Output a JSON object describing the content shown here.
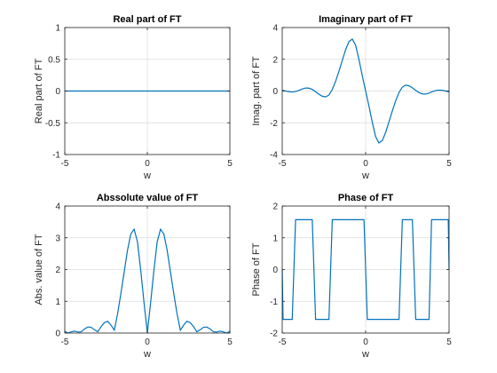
{
  "chart_data": [
    {
      "type": "line",
      "title": "Real part of FT",
      "xlabel": "w",
      "ylabel": "Real part of FT",
      "xlim": [
        -5,
        5
      ],
      "ylim": [
        -1,
        1
      ],
      "xticks": [
        -5,
        0,
        5
      ],
      "yticks": [
        -1,
        -0.5,
        0,
        0.5,
        1
      ],
      "grid": true,
      "series": [
        {
          "color": "#0072BD",
          "x": [
            -5,
            -4,
            -3,
            -2,
            -1,
            0,
            1,
            2,
            3,
            4,
            5
          ],
          "y": [
            0,
            0,
            0,
            0,
            0,
            0,
            0,
            0,
            0,
            0,
            0
          ]
        }
      ]
    },
    {
      "type": "line",
      "title": "Imaginary part of FT",
      "xlabel": "w",
      "ylabel": "Imag. part of FT",
      "xlim": [
        -5,
        5
      ],
      "ylim": [
        -4,
        4
      ],
      "xticks": [
        -5,
        0,
        5
      ],
      "yticks": [
        -4,
        -2,
        0,
        2,
        4
      ],
      "grid": true,
      "series": [
        {
          "color": "#0072BD",
          "x": [
            -5.0,
            -4.8,
            -4.6,
            -4.4,
            -4.2,
            -4.0,
            -3.8,
            -3.6,
            -3.4,
            -3.2,
            -3.0,
            -2.8,
            -2.6,
            -2.4,
            -2.2,
            -2.0,
            -1.8,
            -1.6,
            -1.4,
            -1.2,
            -1.0,
            -0.8,
            -0.6,
            -0.4,
            -0.2,
            0.0,
            0.2,
            0.4,
            0.6,
            0.8,
            1.0,
            1.2,
            1.4,
            1.6,
            1.8,
            2.0,
            2.2,
            2.4,
            2.6,
            2.8,
            3.0,
            3.2,
            3.4,
            3.6,
            3.8,
            4.0,
            4.2,
            4.4,
            4.6,
            4.8,
            5.0
          ],
          "y": [
            0.05,
            0.0,
            -0.04,
            -0.06,
            -0.03,
            0.04,
            0.13,
            0.19,
            0.18,
            0.1,
            -0.04,
            -0.2,
            -0.33,
            -0.37,
            -0.25,
            0.09,
            0.61,
            1.25,
            1.93,
            2.61,
            3.12,
            3.27,
            2.88,
            1.98,
            0.96,
            0.0,
            -0.96,
            -1.98,
            -2.88,
            -3.27,
            -3.12,
            -2.61,
            -1.93,
            -1.25,
            -0.61,
            -0.09,
            0.25,
            0.37,
            0.33,
            0.2,
            0.04,
            -0.1,
            -0.18,
            -0.19,
            -0.13,
            -0.04,
            0.03,
            0.06,
            0.04,
            0.0,
            -0.05
          ]
        }
      ]
    },
    {
      "type": "line",
      "title": "Abssolute value of FT",
      "xlabel": "w",
      "ylabel": "Abs. value of FT",
      "xlim": [
        -5,
        5
      ],
      "ylim": [
        0,
        4
      ],
      "xticks": [
        -5,
        0,
        5
      ],
      "yticks": [
        0,
        1,
        2,
        3,
        4
      ],
      "grid": true,
      "series": [
        {
          "color": "#0072BD",
          "x": [
            -5.0,
            -4.8,
            -4.6,
            -4.4,
            -4.2,
            -4.0,
            -3.8,
            -3.6,
            -3.4,
            -3.2,
            -3.0,
            -2.8,
            -2.6,
            -2.4,
            -2.2,
            -2.0,
            -1.8,
            -1.6,
            -1.4,
            -1.2,
            -1.0,
            -0.8,
            -0.6,
            -0.4,
            -0.2,
            0.0,
            0.2,
            0.4,
            0.6,
            0.8,
            1.0,
            1.2,
            1.4,
            1.6,
            1.8,
            2.0,
            2.2,
            2.4,
            2.6,
            2.8,
            3.0,
            3.2,
            3.4,
            3.6,
            3.8,
            4.0,
            4.2,
            4.4,
            4.6,
            4.8,
            5.0
          ],
          "y": [
            0.05,
            0.0,
            0.04,
            0.06,
            0.03,
            0.04,
            0.13,
            0.19,
            0.18,
            0.1,
            0.04,
            0.2,
            0.33,
            0.37,
            0.25,
            0.09,
            0.61,
            1.25,
            1.93,
            2.61,
            3.12,
            3.27,
            2.88,
            1.98,
            0.96,
            0.0,
            0.96,
            1.98,
            2.88,
            3.27,
            3.12,
            2.61,
            1.93,
            1.25,
            0.61,
            0.09,
            0.25,
            0.37,
            0.33,
            0.2,
            0.04,
            0.1,
            0.18,
            0.19,
            0.13,
            0.04,
            0.03,
            0.06,
            0.04,
            0.0,
            0.05
          ]
        }
      ]
    },
    {
      "type": "line",
      "title": "Phase of FT",
      "xlabel": "w",
      "ylabel": "Phase of FT",
      "xlim": [
        -5,
        5
      ],
      "ylim": [
        -2,
        2
      ],
      "xticks": [
        -5,
        0,
        5
      ],
      "yticks": [
        -2,
        -1,
        0,
        1,
        2
      ],
      "grid": true,
      "series": [
        {
          "color": "#0072BD",
          "x": [
            -5.0,
            -4.95,
            -4.8,
            -4.4,
            -4.2,
            -3.95,
            -3.8,
            -3.2,
            -3.0,
            -2.8,
            -2.2,
            -2.0,
            -0.1,
            0.1,
            2.0,
            2.2,
            2.8,
            3.0,
            3.2,
            3.8,
            3.95,
            4.2,
            4.4,
            4.8,
            4.95,
            5.0
          ],
          "y": [
            0,
            -1.5708,
            -1.5708,
            -1.5708,
            1.5708,
            1.5708,
            1.5708,
            1.5708,
            -1.5708,
            -1.5708,
            -1.5708,
            1.5708,
            1.5708,
            -1.5708,
            -1.5708,
            1.5708,
            1.5708,
            -1.5708,
            -1.5708,
            -1.5708,
            1.5708,
            1.5708,
            1.5708,
            1.5708,
            1.5708,
            0
          ]
        }
      ]
    }
  ]
}
